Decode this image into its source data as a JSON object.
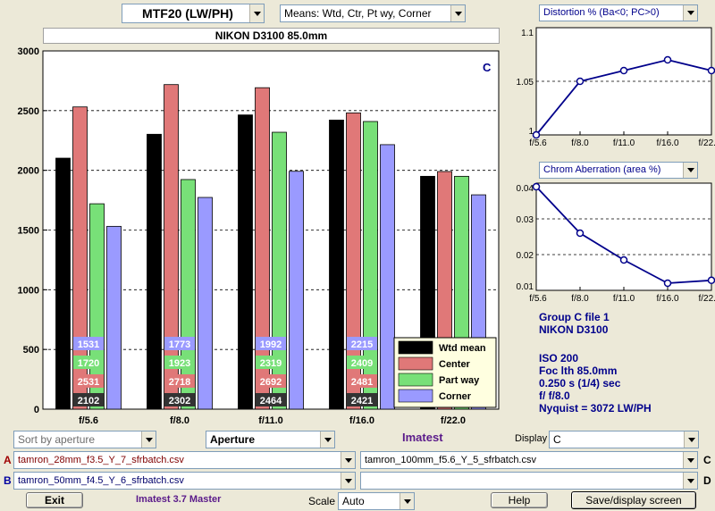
{
  "header": {
    "metric_select": "MTF20 (LW/PH)",
    "means_select": "Means: Wtd, Ctr, Pt wy, Corner",
    "camera_title": "NIKON D3100    85.0mm"
  },
  "mtf_chart": {
    "corner_label": "C",
    "legend_names": [
      "Wtd mean",
      "Center",
      "Part way",
      "Corner"
    ]
  },
  "distortion": {
    "select": "Distortion %  (Ba<0; PC>0)"
  },
  "chrom": {
    "select": "Chrom Aberration (area %)"
  },
  "chart_data": [
    {
      "type": "bar",
      "categories": [
        "f/5.6",
        "f/8.0",
        "f/11.0",
        "f/16.0",
        "f/22.0"
      ],
      "ylim": [
        0,
        3000
      ],
      "yticks": [
        "0",
        "500",
        "1000",
        "1500",
        "2000",
        "2500",
        "3000"
      ],
      "grid": true,
      "legend_position": "bottom-right",
      "series": [
        {
          "name": "Wtd mean",
          "color": "#000000",
          "values": [
            2102,
            2302,
            2464,
            2421,
            1950
          ],
          "labels": [
            "2102",
            "2302",
            "2464",
            "2421",
            ""
          ]
        },
        {
          "name": "Center",
          "color": "#e07878",
          "values": [
            2531,
            2718,
            2692,
            2481,
            1990
          ],
          "labels": [
            "2531",
            "2718",
            "2692",
            "2481",
            ""
          ]
        },
        {
          "name": "Part way",
          "color": "#78e078",
          "values": [
            1720,
            1923,
            2319,
            2409,
            1950
          ],
          "labels": [
            "1720",
            "1923",
            "2319",
            "2409",
            ""
          ]
        },
        {
          "name": "Corner",
          "color": "#9a9aff",
          "values": [
            1531,
            1773,
            1992,
            2215,
            1795
          ],
          "labels": [
            "1531",
            "1773",
            "1992",
            "2215",
            ""
          ]
        }
      ]
    },
    {
      "type": "line",
      "categories": [
        "f/5.6",
        "f/8.0",
        "f/11.0",
        "f/16.0",
        "f/22.0"
      ],
      "values": [
        1.0,
        1.05,
        1.06,
        1.07,
        1.06
      ],
      "ylim": [
        1.0,
        1.1
      ],
      "yticks": [
        "1",
        "1.05",
        "1.1"
      ],
      "grid": true
    },
    {
      "type": "line",
      "categories": [
        "f/5.6",
        "f/8.0",
        "f/11.0",
        "f/16.0",
        "f/22.0"
      ],
      "values": [
        0.039,
        0.026,
        0.0185,
        0.012,
        0.0128
      ],
      "ylim": [
        0.01,
        0.04
      ],
      "yticks": [
        "0.01",
        "0.02",
        "0.03",
        "0.04"
      ],
      "grid": true
    }
  ],
  "info": {
    "group": "Group C file 1",
    "camera": "NIKON D3100",
    "iso": "ISO  200",
    "focal": "Foc lth  85.0mm",
    "shutter": "0.250 s  (1/4)  sec",
    "fstop": "f/  f/8.0",
    "nyquist": "Nyquist = 3072 LW/PH"
  },
  "controls": {
    "sort_select": "Sort by aperture",
    "xaxis_select": "Aperture",
    "brand": "Imatest",
    "display_label": "Display",
    "display_select": "C",
    "file_a_letter": "A",
    "file_a": "tamron_28mm_f3.5_Y_7_sfrbatch.csv",
    "file_b_letter": "B",
    "file_b": "tamron_50mm_f4.5_Y_6_sfrbatch.csv",
    "file_c_letter": "C",
    "file_c": "tamron_100mm_f5.6_Y_5_sfrbatch.csv",
    "file_d_letter": "D",
    "file_d": "",
    "exit_button": "Exit",
    "version": "Imatest 3.7 Master",
    "scale_label": "Scale",
    "scale_select": "Auto",
    "help_button": "Help",
    "save_button": "Save/display screen"
  }
}
